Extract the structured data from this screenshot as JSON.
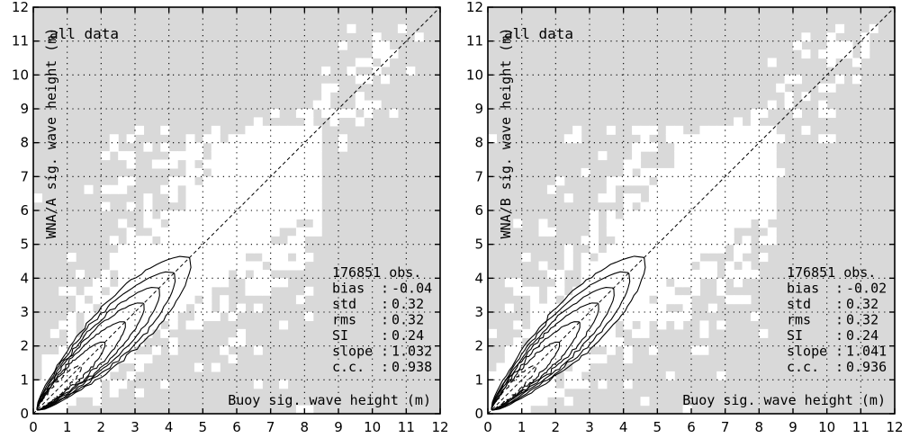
{
  "chart_data": [
    {
      "type": "heatmap",
      "subtype": "scatter-density-with-contours",
      "panel_label": "all data",
      "xlabel": "Buoy sig. wave height (m)",
      "ylabel": "WNA/A sig. wave height (m)",
      "xlim": [
        0,
        12
      ],
      "ylim": [
        0,
        12
      ],
      "xticks": [
        0,
        1,
        2,
        3,
        4,
        5,
        6,
        7,
        8,
        9,
        10,
        11,
        12
      ],
      "yticks": [
        0,
        1,
        2,
        3,
        4,
        5,
        6,
        7,
        8,
        9,
        10,
        11,
        12
      ],
      "grid": true,
      "reference_line": "y = x (dashed)",
      "shading": {
        "empty_color": "#d9d9d9",
        "data_color": "#ffffff"
      },
      "stats": [
        {
          "label": "",
          "sep": "",
          "value": "176851 obs."
        },
        {
          "label": "bias",
          "sep": ":",
          "value": "-0.04"
        },
        {
          "label": "std",
          "sep": ":",
          "value": "0.32"
        },
        {
          "label": "rms",
          "sep": ":",
          "value": "0.32"
        },
        {
          "label": "SI",
          "sep": ":",
          "value": "0.24"
        },
        {
          "label": "slope",
          "sep": ":",
          "value": "1.032"
        },
        {
          "label": "c.c.",
          "sep": ":",
          "value": "0.938"
        }
      ]
    },
    {
      "type": "heatmap",
      "subtype": "scatter-density-with-contours",
      "panel_label": "all data",
      "xlabel": "Buoy sig. wave height (m)",
      "ylabel": "WNA/B sig. wave height (m)",
      "xlim": [
        0,
        12
      ],
      "ylim": [
        0,
        12
      ],
      "xticks": [
        0,
        1,
        2,
        3,
        4,
        5,
        6,
        7,
        8,
        9,
        10,
        11,
        12
      ],
      "yticks": [
        0,
        1,
        2,
        3,
        4,
        5,
        6,
        7,
        8,
        9,
        10,
        11,
        12
      ],
      "grid": true,
      "reference_line": "y = x (dashed)",
      "shading": {
        "empty_color": "#d9d9d9",
        "data_color": "#ffffff"
      },
      "stats": [
        {
          "label": "",
          "sep": "",
          "value": "176851 obs."
        },
        {
          "label": "bias",
          "sep": ":",
          "value": "-0.02"
        },
        {
          "label": "std",
          "sep": ":",
          "value": "0.32"
        },
        {
          "label": "rms",
          "sep": ":",
          "value": "0.32"
        },
        {
          "label": "SI",
          "sep": ":",
          "value": "0.24"
        },
        {
          "label": "slope",
          "sep": ":",
          "value": "1.041"
        },
        {
          "label": "c.c.",
          "sep": ":",
          "value": "0.936"
        }
      ]
    }
  ]
}
